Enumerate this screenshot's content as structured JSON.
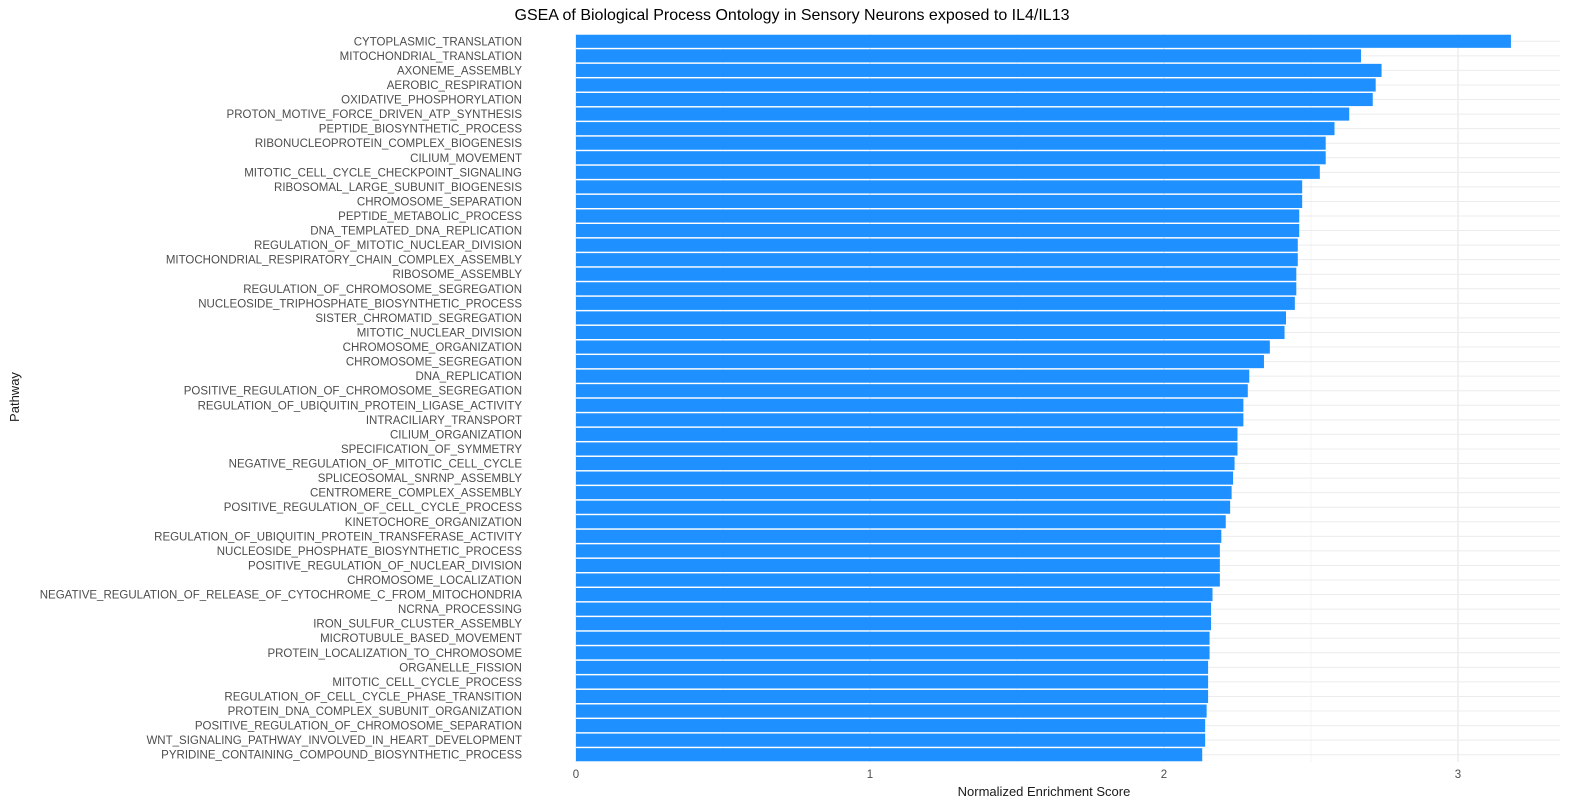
{
  "chart_data": {
    "type": "bar",
    "orientation": "horizontal",
    "title": "GSEA of Biological Process Ontology in Sensory Neurons exposed to IL4/IL13",
    "xlabel": "Normalized Enrichment Score",
    "ylabel": "Pathway",
    "xlim": [
      0,
      3.3
    ],
    "xticks": [
      0,
      1,
      2,
      3
    ],
    "grid": true,
    "legend": "none",
    "bar_color": "#1E90FF",
    "categories": [
      "CYTOPLASMIC_TRANSLATION",
      "MITOCHONDRIAL_TRANSLATION",
      "AXONEME_ASSEMBLY",
      "AEROBIC_RESPIRATION",
      "OXIDATIVE_PHOSPHORYLATION",
      "PROTON_MOTIVE_FORCE_DRIVEN_ATP_SYNTHESIS",
      "PEPTIDE_BIOSYNTHETIC_PROCESS",
      "RIBONUCLEOPROTEIN_COMPLEX_BIOGENESIS",
      "CILIUM_MOVEMENT",
      "MITOTIC_CELL_CYCLE_CHECKPOINT_SIGNALING",
      "RIBOSOMAL_LARGE_SUBUNIT_BIOGENESIS",
      "CHROMOSOME_SEPARATION",
      "PEPTIDE_METABOLIC_PROCESS",
      "DNA_TEMPLATED_DNA_REPLICATION",
      "REGULATION_OF_MITOTIC_NUCLEAR_DIVISION",
      "MITOCHONDRIAL_RESPIRATORY_CHAIN_COMPLEX_ASSEMBLY",
      "RIBOSOME_ASSEMBLY",
      "REGULATION_OF_CHROMOSOME_SEGREGATION",
      "NUCLEOSIDE_TRIPHOSPHATE_BIOSYNTHETIC_PROCESS",
      "SISTER_CHROMATID_SEGREGATION",
      "MITOTIC_NUCLEAR_DIVISION",
      "CHROMOSOME_ORGANIZATION",
      "CHROMOSOME_SEGREGATION",
      "DNA_REPLICATION",
      "POSITIVE_REGULATION_OF_CHROMOSOME_SEGREGATION",
      "REGULATION_OF_UBIQUITIN_PROTEIN_LIGASE_ACTIVITY",
      "INTRACILIARY_TRANSPORT",
      "CILIUM_ORGANIZATION",
      "SPECIFICATION_OF_SYMMETRY",
      "NEGATIVE_REGULATION_OF_MITOTIC_CELL_CYCLE",
      "SPLICEOSOMAL_SNRNP_ASSEMBLY",
      "CENTROMERE_COMPLEX_ASSEMBLY",
      "POSITIVE_REGULATION_OF_CELL_CYCLE_PROCESS",
      "KINETOCHORE_ORGANIZATION",
      "REGULATION_OF_UBIQUITIN_PROTEIN_TRANSFERASE_ACTIVITY",
      "NUCLEOSIDE_PHOSPHATE_BIOSYNTHETIC_PROCESS",
      "POSITIVE_REGULATION_OF_NUCLEAR_DIVISION",
      "CHROMOSOME_LOCALIZATION",
      "NEGATIVE_REGULATION_OF_RELEASE_OF_CYTOCHROME_C_FROM_MITOCHONDRIA",
      "NCRNA_PROCESSING",
      "IRON_SULFUR_CLUSTER_ASSEMBLY",
      "MICROTUBULE_BASED_MOVEMENT",
      "PROTEIN_LOCALIZATION_TO_CHROMOSOME",
      "ORGANELLE_FISSION",
      "MITOTIC_CELL_CYCLE_PROCESS",
      "REGULATION_OF_CELL_CYCLE_PHASE_TRANSITION",
      "PROTEIN_DNA_COMPLEX_SUBUNIT_ORGANIZATION",
      "POSITIVE_REGULATION_OF_CHROMOSOME_SEPARATION",
      "WNT_SIGNALING_PATHWAY_INVOLVED_IN_HEART_DEVELOPMENT",
      "PYRIDINE_CONTAINING_COMPOUND_BIOSYNTHETIC_PROCESS"
    ],
    "values": [
      3.18,
      2.67,
      2.74,
      2.72,
      2.71,
      2.63,
      2.58,
      2.55,
      2.55,
      2.53,
      2.47,
      2.47,
      2.46,
      2.46,
      2.455,
      2.455,
      2.45,
      2.45,
      2.445,
      2.415,
      2.41,
      2.36,
      2.34,
      2.29,
      2.285,
      2.27,
      2.27,
      2.25,
      2.25,
      2.24,
      2.235,
      2.23,
      2.225,
      2.21,
      2.195,
      2.19,
      2.19,
      2.19,
      2.165,
      2.16,
      2.16,
      2.155,
      2.155,
      2.15,
      2.15,
      2.15,
      2.145,
      2.14,
      2.14,
      2.13
    ]
  }
}
